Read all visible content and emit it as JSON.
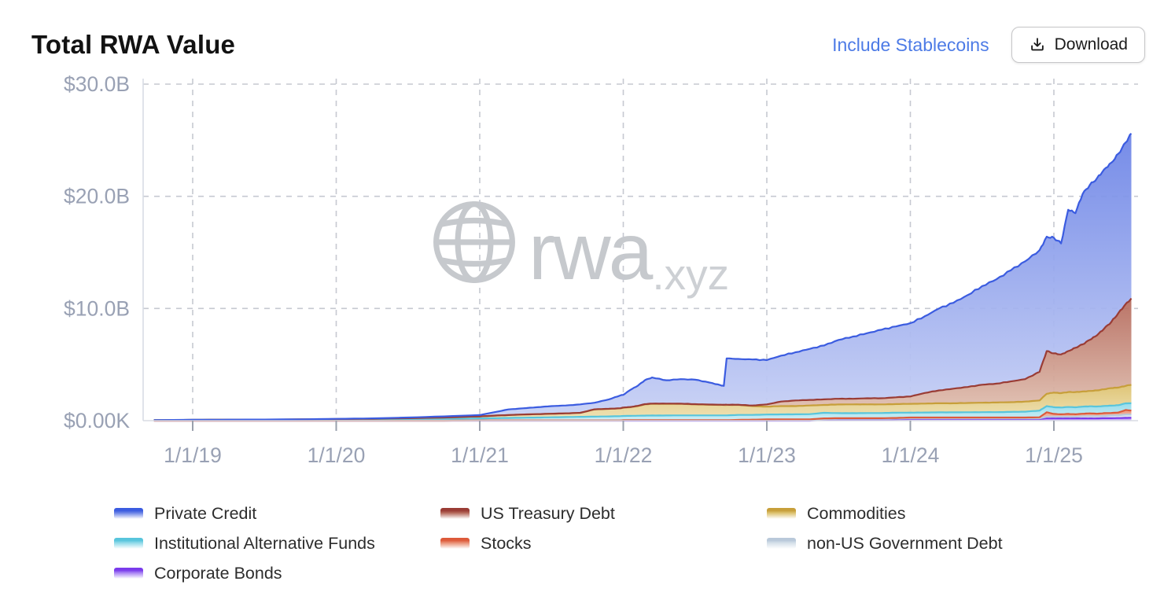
{
  "header": {
    "title": "Total RWA Value",
    "include_stablecoins_label": "Include Stablecoins",
    "download_label": "Download"
  },
  "watermark": {
    "brand": "rwa",
    "suffix": ".xyz"
  },
  "chart_data": {
    "type": "area",
    "stacked": true,
    "title": "Total RWA Value",
    "unit": "USD billions",
    "ylabel": "",
    "xlabel": "",
    "ylim": [
      0,
      30
    ],
    "grid": "dashed",
    "legend_position": "bottom",
    "y_ticks": [
      {
        "value": 30,
        "label": "$30.0B"
      },
      {
        "value": 20,
        "label": "$20.0B"
      },
      {
        "value": 10,
        "label": "$10.0B"
      },
      {
        "value": 0,
        "label": "$0.00K"
      }
    ],
    "x_ticks": [
      {
        "year": 2019,
        "label": "1/1/19"
      },
      {
        "year": 2020,
        "label": "1/1/20"
      },
      {
        "year": 2021,
        "label": "1/1/21"
      },
      {
        "year": 2022,
        "label": "1/1/22"
      },
      {
        "year": 2023,
        "label": "1/1/23"
      },
      {
        "year": 2024,
        "label": "1/1/24"
      },
      {
        "year": 2025,
        "label": "1/1/25"
      }
    ],
    "x_years": [
      2018.73,
      2019.0,
      2019.25,
      2019.5,
      2019.75,
      2020.0,
      2020.25,
      2020.5,
      2020.75,
      2021.0,
      2021.1,
      2021.2,
      2021.3,
      2021.4,
      2021.5,
      2021.6,
      2021.7,
      2021.8,
      2021.9,
      2021.98,
      2022.0,
      2022.05,
      2022.1,
      2022.15,
      2022.2,
      2022.3,
      2022.4,
      2022.5,
      2022.6,
      2022.68,
      2022.7,
      2022.72,
      2022.8,
      2022.9,
      2023.0,
      2023.1,
      2023.2,
      2023.3,
      2023.4,
      2023.5,
      2023.6,
      2023.7,
      2023.8,
      2023.9,
      2024.0,
      2024.1,
      2024.2,
      2024.3,
      2024.4,
      2024.5,
      2024.6,
      2024.7,
      2024.8,
      2024.9,
      2024.95,
      2025.0,
      2025.05,
      2025.1,
      2025.15,
      2025.2,
      2025.25,
      2025.3,
      2025.35,
      2025.4,
      2025.45,
      2025.5,
      2025.54
    ],
    "series": [
      {
        "key": "corporate_bonds",
        "label": "Corporate Bonds",
        "line": "#7a3bec",
        "fill_top": "#a57ef3",
        "fill_bottom": "#d9c8f9",
        "values": [
          0,
          0,
          0,
          0,
          0,
          0,
          0,
          0,
          0,
          0,
          0,
          0,
          0,
          0,
          0,
          0,
          0,
          0,
          0,
          0,
          0,
          0,
          0,
          0,
          0,
          0,
          0,
          0,
          0,
          0,
          0,
          0,
          0,
          0,
          0,
          0,
          0,
          0,
          0.08,
          0.1,
          0.1,
          0.1,
          0.1,
          0.12,
          0.15,
          0.15,
          0.15,
          0.15,
          0.15,
          0.15,
          0.15,
          0.15,
          0.15,
          0.15,
          0.2,
          0.2,
          0.2,
          0.2,
          0.2,
          0.2,
          0.2,
          0.2,
          0.22,
          0.22,
          0.23,
          0.25,
          0.25
        ]
      },
      {
        "key": "non_us_gov_debt",
        "label": "non-US Government Debt",
        "line": "#b9c9da",
        "fill_top": "#d3dfe9",
        "fill_bottom": "#eef3f7",
        "values": [
          0,
          0,
          0,
          0,
          0,
          0,
          0,
          0,
          0,
          0.02,
          0.02,
          0.02,
          0.02,
          0.02,
          0.02,
          0.02,
          0.02,
          0.02,
          0.02,
          0.02,
          0.04,
          0.04,
          0.04,
          0.04,
          0.04,
          0.04,
          0.04,
          0.04,
          0.04,
          0.04,
          0.04,
          0.04,
          0.04,
          0.04,
          0.06,
          0.06,
          0.06,
          0.06,
          0.06,
          0.06,
          0.06,
          0.06,
          0.06,
          0.06,
          0.05,
          0.05,
          0.05,
          0.05,
          0.05,
          0.05,
          0.05,
          0.05,
          0.05,
          0.05,
          0.15,
          0.15,
          0.15,
          0.15,
          0.15,
          0.2,
          0.2,
          0.2,
          0.2,
          0.25,
          0.25,
          0.3,
          0.3
        ]
      },
      {
        "key": "stocks",
        "label": "Stocks",
        "line": "#dd5a3a",
        "fill_top": "#e98e72",
        "fill_bottom": "#f6c8b5",
        "values": [
          0,
          0,
          0,
          0,
          0,
          0,
          0,
          0,
          0,
          0,
          0,
          0,
          0,
          0,
          0,
          0,
          0,
          0,
          0,
          0,
          0,
          0,
          0,
          0,
          0,
          0,
          0,
          0,
          0,
          0,
          0,
          0,
          0.03,
          0.05,
          0.05,
          0.06,
          0.06,
          0.06,
          0.06,
          0.06,
          0.06,
          0.06,
          0.06,
          0.06,
          0.08,
          0.08,
          0.08,
          0.08,
          0.08,
          0.08,
          0.08,
          0.08,
          0.08,
          0.1,
          0.4,
          0.25,
          0.22,
          0.25,
          0.22,
          0.22,
          0.25,
          0.22,
          0.25,
          0.22,
          0.25,
          0.4,
          0.35
        ]
      },
      {
        "key": "institutional_alt_funds",
        "label": "Institutional Alternative Funds",
        "line": "#58c5dc",
        "fill_top": "#8ed9e9",
        "fill_bottom": "#cdeef5",
        "values": [
          0.04,
          0.07,
          0.08,
          0.09,
          0.1,
          0.12,
          0.13,
          0.15,
          0.17,
          0.18,
          0.2,
          0.22,
          0.24,
          0.26,
          0.28,
          0.3,
          0.32,
          0.34,
          0.36,
          0.38,
          0.38,
          0.39,
          0.4,
          0.41,
          0.42,
          0.42,
          0.43,
          0.43,
          0.43,
          0.43,
          0.43,
          0.43,
          0.44,
          0.42,
          0.44,
          0.44,
          0.45,
          0.46,
          0.5,
          0.45,
          0.45,
          0.46,
          0.46,
          0.47,
          0.44,
          0.45,
          0.46,
          0.46,
          0.47,
          0.48,
          0.48,
          0.5,
          0.52,
          0.6,
          0.55,
          0.6,
          0.6,
          0.62,
          0.62,
          0.63,
          0.63,
          0.64,
          0.64,
          0.65,
          0.65,
          0.6,
          0.65
        ]
      },
      {
        "key": "commodities",
        "label": "Commodities",
        "line": "#c79f3a",
        "fill_top": "#dcc06c",
        "fill_bottom": "#efe2b4",
        "values": [
          0,
          0,
          0,
          0,
          0.01,
          0.02,
          0.04,
          0.07,
          0.11,
          0.18,
          0.23,
          0.26,
          0.29,
          0.3,
          0.32,
          0.33,
          0.36,
          0.64,
          0.67,
          0.7,
          0.73,
          0.77,
          0.86,
          1.0,
          1.04,
          1.04,
          1.03,
          0.98,
          0.95,
          0.93,
          0.93,
          0.93,
          0.89,
          0.79,
          0.7,
          0.74,
          0.73,
          0.77,
          0.7,
          0.78,
          0.78,
          0.77,
          0.77,
          0.77,
          0.78,
          0.79,
          0.81,
          0.81,
          0.83,
          0.84,
          0.86,
          0.87,
          0.9,
          0.9,
          1.1,
          1.3,
          1.28,
          1.33,
          1.36,
          1.35,
          1.37,
          1.44,
          1.49,
          1.56,
          1.57,
          1.55,
          1.65
        ]
      },
      {
        "key": "us_treasury",
        "label": "US Treasury Debt",
        "line": "#9a3c35",
        "fill_top": "#b4685a",
        "fill_bottom": "#e4c8b9",
        "values": [
          0,
          0,
          0,
          0,
          0,
          0,
          0,
          0,
          0,
          0,
          0,
          0,
          0,
          0,
          0,
          0,
          0,
          0.01,
          0.01,
          0.01,
          0.02,
          0.02,
          0.02,
          0.02,
          0.02,
          0.02,
          0.02,
          0.02,
          0.02,
          0.02,
          0.02,
          0.02,
          0.02,
          0.05,
          0.2,
          0.4,
          0.5,
          0.5,
          0.5,
          0.5,
          0.5,
          0.55,
          0.55,
          0.6,
          0.65,
          0.95,
          1.15,
          1.3,
          1.42,
          1.6,
          1.68,
          1.85,
          2.0,
          2.55,
          3.8,
          3.5,
          3.45,
          3.65,
          3.95,
          4.2,
          4.55,
          4.9,
          5.4,
          5.9,
          6.65,
          7.3,
          7.7
        ]
      },
      {
        "key": "private_credit",
        "label": "Private Credit",
        "line": "#3b5ce0",
        "fill_top": "#6a82e6",
        "fill_bottom": "#c9d2f5",
        "values": [
          0.01,
          0.01,
          0.01,
          0.01,
          0.01,
          0.02,
          0.03,
          0.06,
          0.1,
          0.12,
          0.3,
          0.5,
          0.55,
          0.62,
          0.68,
          0.7,
          0.75,
          0.59,
          0.84,
          1.14,
          1.13,
          1.53,
          1.78,
          2.13,
          2.33,
          2.08,
          2.18,
          2.18,
          1.96,
          1.73,
          1.68,
          4.13,
          4.08,
          4.1,
          3.95,
          4.1,
          4.3,
          4.55,
          4.8,
          5.25,
          5.55,
          5.8,
          6.1,
          6.32,
          6.55,
          6.83,
          7.3,
          7.65,
          8.2,
          8.8,
          9.3,
          9.9,
          10.5,
          10.85,
          10.2,
          10.3,
          9.9,
          12.6,
          12.0,
          13.4,
          13.8,
          14.0,
          14.2,
          14.2,
          14.2,
          14.4,
          14.7
        ]
      }
    ]
  },
  "legend": {
    "columns": [
      [
        "private_credit",
        "institutional_alt_funds",
        "corporate_bonds"
      ],
      [
        "us_treasury",
        "stocks"
      ],
      [
        "commodities",
        "non_us_gov_debt"
      ]
    ]
  }
}
